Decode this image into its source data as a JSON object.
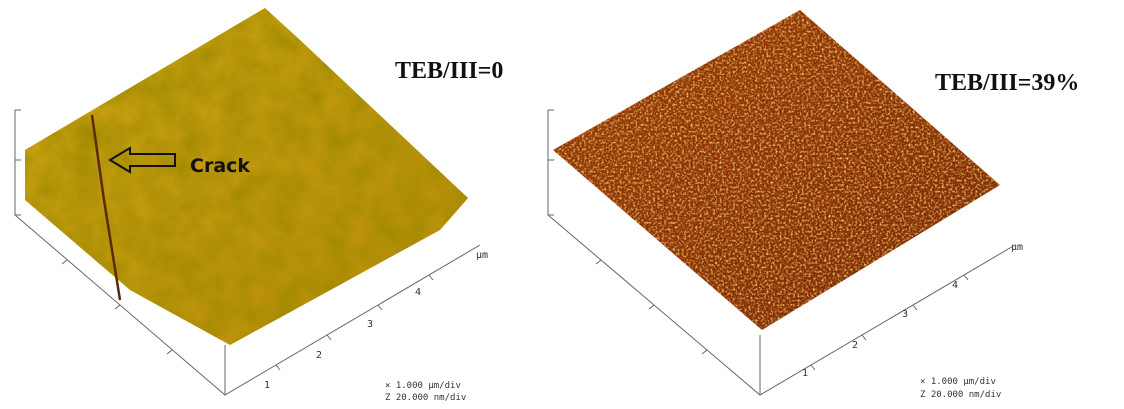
{
  "panels": [
    {
      "label": "TEB/III=0",
      "annotation": "Crack",
      "ticks": [
        "1",
        "2",
        "3",
        "4"
      ],
      "unit": "µm",
      "scale_xy": "×  1.000 µm/div",
      "scale_z": "Z  20.000 nm/div"
    },
    {
      "label": "TEB/III=39%",
      "ticks": [
        "1",
        "2",
        "3",
        "4"
      ],
      "unit": "µm",
      "scale_xy": "×  1.000 µm/div",
      "scale_z": "Z  20.000 nm/div"
    }
  ]
}
